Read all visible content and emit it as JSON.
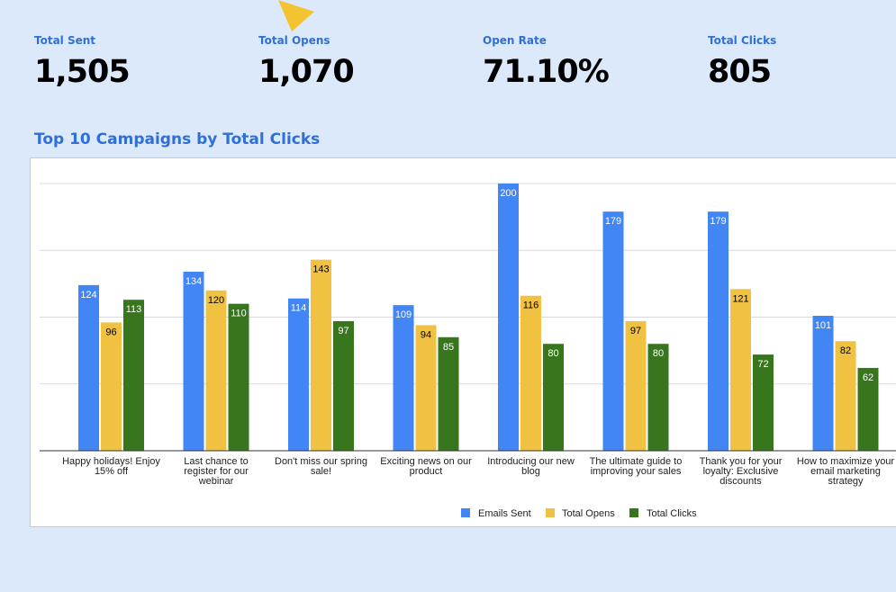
{
  "kpis": [
    {
      "label": "Total Sent",
      "value": "1,505"
    },
    {
      "label": "Total Opens",
      "value": "1,070"
    },
    {
      "label": "Open Rate",
      "value": "71.10%"
    },
    {
      "label": "Total Clicks",
      "value": "805"
    }
  ],
  "section_title": "Top 10 Campaigns by Total Clicks",
  "colors": {
    "accent": "#2f6fd6",
    "emails_sent": "#4285f4",
    "total_opens": "#f1c242",
    "total_clicks": "#38761d",
    "cursor": "#f4c430"
  },
  "icons": {
    "cursor": "pointer-cursor-icon"
  },
  "chart_data": {
    "type": "bar",
    "title": "",
    "xlabel": "",
    "ylabel": "",
    "ylim": [
      0,
      200
    ],
    "grid": true,
    "legend_position": "bottom",
    "categories": [
      [
        "Happy holidays! Enjoy",
        "15% off"
      ],
      [
        "Last chance to",
        "register for our",
        "webinar"
      ],
      [
        "Don't miss our spring",
        "sale!"
      ],
      [
        "Exciting news on our",
        "product"
      ],
      [
        "Introducing our new",
        "blog"
      ],
      [
        "The ultimate guide to",
        "improving your sales"
      ],
      [
        "Thank you for your",
        "loyalty: Exclusive",
        "discounts"
      ],
      [
        "How to maximize your",
        "email marketing",
        "strategy"
      ]
    ],
    "series": [
      {
        "name": "Emails Sent",
        "color": "#4285f4",
        "values": [
          124,
          134,
          114,
          109,
          200,
          179,
          179,
          101
        ]
      },
      {
        "name": "Total Opens",
        "color": "#f1c242",
        "values": [
          96,
          120,
          143,
          94,
          116,
          97,
          121,
          82
        ]
      },
      {
        "name": "Total Clicks",
        "color": "#38761d",
        "values": [
          113,
          110,
          97,
          85,
          80,
          80,
          72,
          62
        ]
      }
    ]
  }
}
